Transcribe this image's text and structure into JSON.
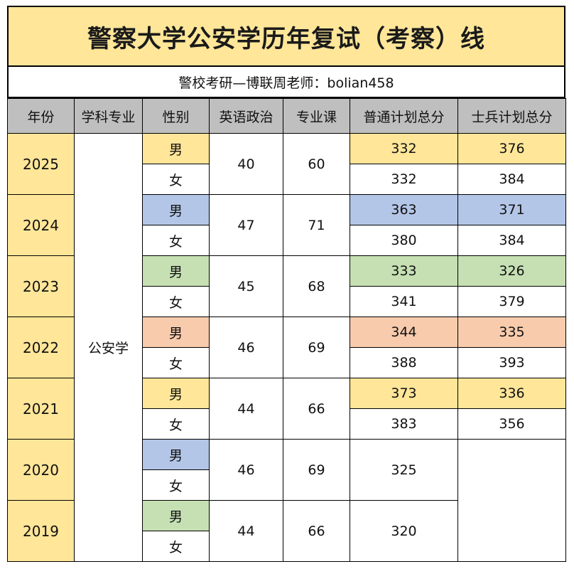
{
  "title": "警察大学公安学历年复试（考察）线",
  "subtitle": "警校考研—博联周老师：bolian458",
  "headers": [
    "年份",
    "学科专业",
    "性别",
    "英语政治",
    "专业课",
    "普通计划总分",
    "士兵计划总分"
  ],
  "major": "公安学",
  "gender": {
    "male": "男",
    "female": "女"
  },
  "rows": [
    {
      "year": "2025",
      "english_politics": "40",
      "major_course": "60",
      "regular_male": "332",
      "regular_female": "332",
      "soldier_male": "376",
      "soldier_female": "384",
      "color": "#ffe699"
    },
    {
      "year": "2024",
      "english_politics": "47",
      "major_course": "71",
      "regular_male": "363",
      "regular_female": "380",
      "soldier_male": "371",
      "soldier_female": "384",
      "color": "#b4c6e7"
    },
    {
      "year": "2023",
      "english_politics": "45",
      "major_course": "68",
      "regular_male": "333",
      "regular_female": "341",
      "soldier_male": "326",
      "soldier_female": "379",
      "color": "#c6e0b4"
    },
    {
      "year": "2022",
      "english_politics": "46",
      "major_course": "69",
      "regular_male": "344",
      "regular_female": "388",
      "soldier_male": "335",
      "soldier_female": "393",
      "color": "#f8cbad"
    },
    {
      "year": "2021",
      "english_politics": "44",
      "major_course": "66",
      "regular_male": "373",
      "regular_female": "383",
      "soldier_male": "336",
      "soldier_female": "356",
      "color": "#ffe699"
    },
    {
      "year": "2020",
      "english_politics": "46",
      "major_course": "69",
      "regular_total": "325",
      "color": "#b4c6e7"
    },
    {
      "year": "2019",
      "english_politics": "44",
      "major_course": "66",
      "regular_total": "320",
      "color": "#c6e0b4"
    }
  ]
}
